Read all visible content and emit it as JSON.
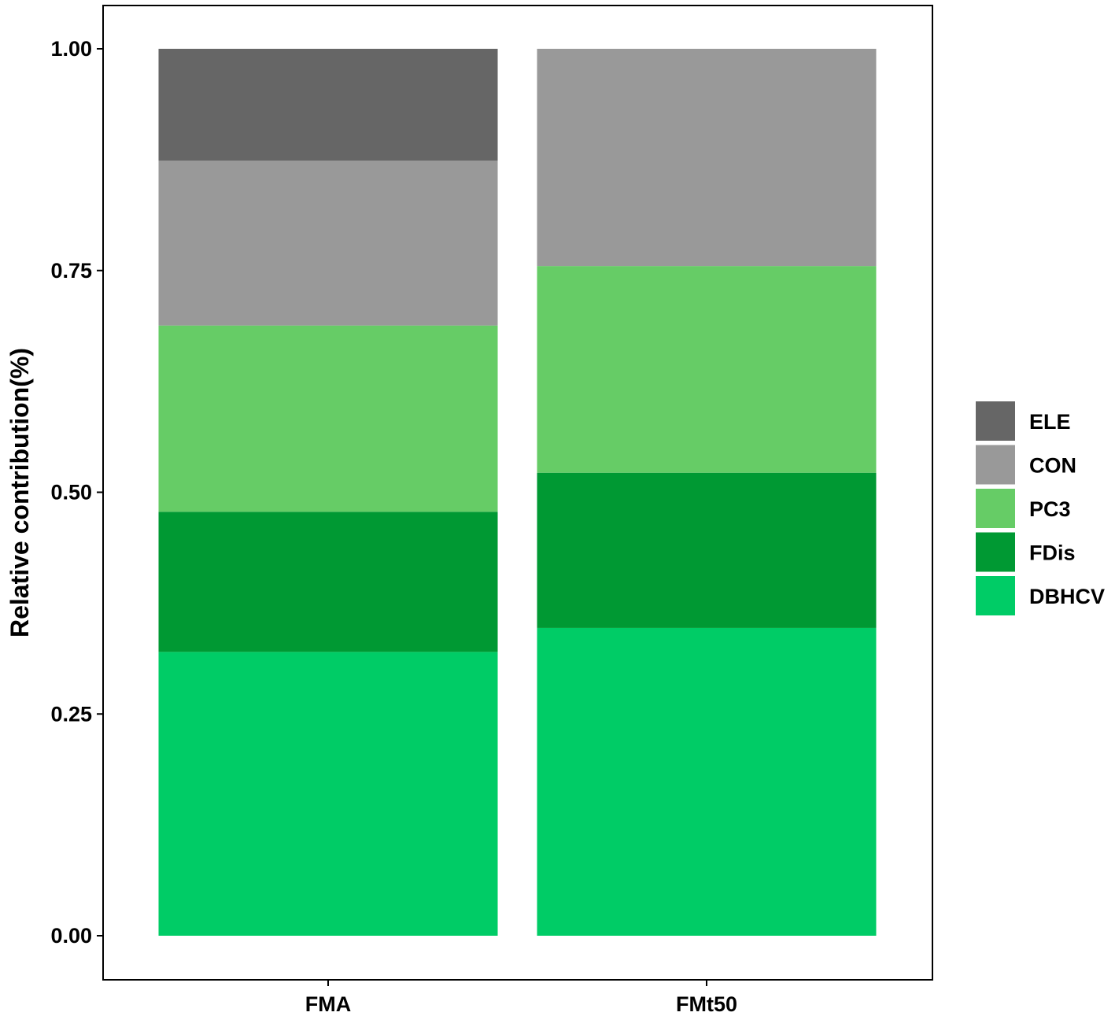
{
  "chart_data": {
    "type": "bar",
    "stacked": true,
    "title": "",
    "xlabel": "",
    "ylabel": "Relative contribution(%)",
    "ylim": [
      0,
      1.05
    ],
    "yticks": [
      "0.00",
      "0.25",
      "0.50",
      "0.75",
      "1.00"
    ],
    "ytick_values": [
      0,
      0.25,
      0.5,
      0.75,
      1.0
    ],
    "categories": [
      "FMA",
      "FMt50"
    ],
    "grid": false,
    "legend_position": "right",
    "series": [
      {
        "name": "DBHCV",
        "color": "#00CC66",
        "values": [
          0.32,
          0.347
        ]
      },
      {
        "name": "FDis",
        "color": "#009933",
        "values": [
          0.158,
          0.175
        ]
      },
      {
        "name": "PC3",
        "color": "#66CC66",
        "values": [
          0.21,
          0.233
        ]
      },
      {
        "name": "CON",
        "color": "#999999",
        "values": [
          0.186,
          0.245
        ]
      },
      {
        "name": "ELE",
        "color": "#666666",
        "values": [
          0.126,
          0.0
        ]
      }
    ],
    "legend_order": [
      "ELE",
      "CON",
      "PC3",
      "FDis",
      "DBHCV"
    ]
  }
}
